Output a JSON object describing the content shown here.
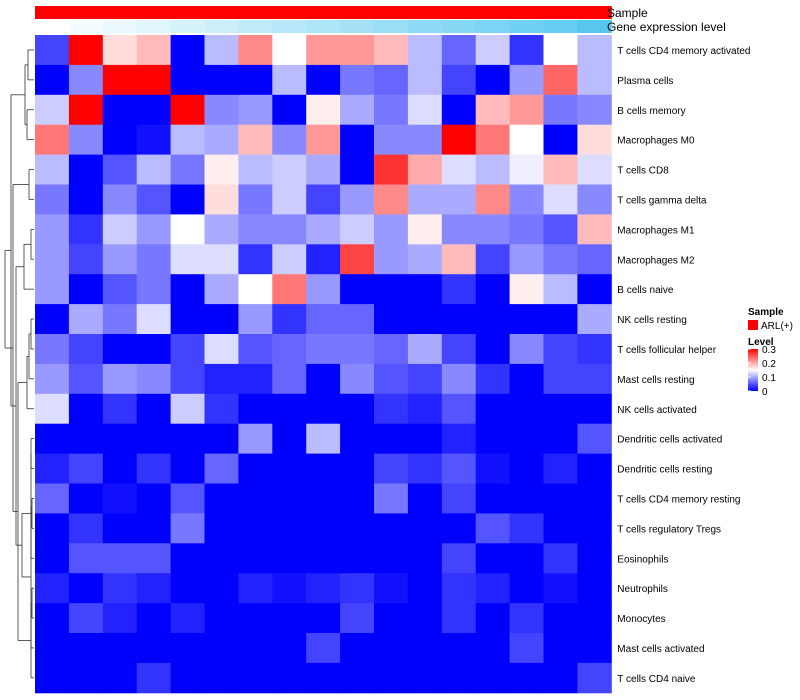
{
  "chart_data": {
    "type": "heatmap",
    "annotations": [
      {
        "name": "Sample",
        "kind": "categorical",
        "color": "#ff0000"
      },
      {
        "name": "Gene expression level",
        "kind": "continuous",
        "color_low": "#ffffff",
        "color_high": "#56c8f0"
      }
    ],
    "rows": [
      "T cells CD4 memory activated",
      "Plasma cells",
      "B cells memory",
      "Macrophages M0",
      "T cells CD8",
      "T cells gamma delta",
      "Macrophages M1",
      "Macrophages M2",
      "B cells naive",
      "NK cells resting",
      "T cells follicular helper",
      "Mast cells resting",
      "NK cells activated",
      "Dendritic cells activated",
      "Dendritic cells resting",
      "T cells CD4 memory resting",
      "T cells regulatory  Tregs",
      "Eosinophils",
      "Neutrophils",
      "Monocytes",
      "Mast cells activated",
      "T cells CD4 naive"
    ],
    "n_columns": 17,
    "values": [
      [
        0.04,
        0.3,
        0.17,
        0.19,
        0.0,
        0.11,
        0.22,
        0.15,
        0.21,
        0.21,
        0.19,
        0.11,
        0.06,
        0.12,
        0.03,
        0.15,
        0.11
      ],
      [
        0.0,
        0.08,
        0.3,
        0.3,
        0.0,
        0.0,
        0.0,
        0.11,
        0.0,
        0.07,
        0.06,
        0.11,
        0.04,
        0.0,
        0.09,
        0.24,
        0.11
      ],
      [
        0.12,
        0.3,
        0.0,
        0.0,
        0.3,
        0.08,
        0.09,
        0.0,
        0.16,
        0.1,
        0.07,
        0.13,
        0.0,
        0.19,
        0.21,
        0.07,
        0.08
      ],
      [
        0.23,
        0.08,
        0.0,
        0.01,
        0.11,
        0.1,
        0.19,
        0.08,
        0.21,
        0.0,
        0.08,
        0.08,
        0.3,
        0.23,
        0.15,
        0.0,
        0.17
      ],
      [
        0.11,
        0.0,
        0.05,
        0.11,
        0.07,
        0.16,
        0.11,
        0.12,
        0.1,
        0.0,
        0.27,
        0.2,
        0.13,
        0.11,
        0.14,
        0.19,
        0.13
      ],
      [
        0.07,
        0.0,
        0.08,
        0.05,
        0.0,
        0.17,
        0.07,
        0.12,
        0.04,
        0.09,
        0.22,
        0.1,
        0.1,
        0.22,
        0.08,
        0.13,
        0.08
      ],
      [
        0.09,
        0.03,
        0.12,
        0.09,
        0.15,
        0.1,
        0.08,
        0.08,
        0.1,
        0.12,
        0.09,
        0.16,
        0.08,
        0.08,
        0.07,
        0.05,
        0.19
      ],
      [
        0.09,
        0.04,
        0.09,
        0.07,
        0.13,
        0.13,
        0.03,
        0.12,
        0.02,
        0.26,
        0.09,
        0.1,
        0.19,
        0.04,
        0.09,
        0.07,
        0.06
      ],
      [
        0.09,
        0.0,
        0.05,
        0.07,
        0.0,
        0.1,
        0.15,
        0.23,
        0.09,
        0.0,
        0.0,
        0.0,
        0.03,
        0.0,
        0.16,
        0.11,
        0.0
      ],
      [
        0.0,
        0.1,
        0.07,
        0.13,
        0.0,
        0.0,
        0.09,
        0.03,
        0.06,
        0.06,
        0.0,
        0.0,
        0.0,
        0.0,
        0.0,
        0.0,
        0.1
      ],
      [
        0.07,
        0.04,
        0.0,
        0.0,
        0.04,
        0.13,
        0.05,
        0.06,
        0.07,
        0.07,
        0.06,
        0.1,
        0.04,
        0.0,
        0.08,
        0.04,
        0.03
      ],
      [
        0.09,
        0.05,
        0.09,
        0.08,
        0.04,
        0.02,
        0.02,
        0.06,
        0.0,
        0.08,
        0.05,
        0.04,
        0.08,
        0.03,
        0.0,
        0.04,
        0.04
      ],
      [
        0.13,
        0.0,
        0.03,
        0.0,
        0.12,
        0.03,
        0.0,
        0.0,
        0.0,
        0.0,
        0.03,
        0.02,
        0.05,
        0.0,
        0.0,
        0.0,
        0.0
      ],
      [
        0.0,
        0.0,
        0.0,
        0.0,
        0.0,
        0.0,
        0.09,
        0.0,
        0.11,
        0.0,
        0.0,
        0.0,
        0.02,
        0.0,
        0.0,
        0.0,
        0.05
      ],
      [
        0.02,
        0.04,
        0.0,
        0.03,
        0.0,
        0.06,
        0.0,
        0.0,
        0.0,
        0.0,
        0.04,
        0.03,
        0.05,
        0.01,
        0.0,
        0.02,
        0.0
      ],
      [
        0.06,
        0.0,
        0.01,
        0.0,
        0.05,
        0.0,
        0.0,
        0.0,
        0.0,
        0.0,
        0.07,
        0.0,
        0.04,
        0.0,
        0.0,
        0.0,
        0.0
      ],
      [
        0.0,
        0.03,
        0.0,
        0.0,
        0.07,
        0.0,
        0.0,
        0.0,
        0.0,
        0.0,
        0.0,
        0.0,
        0.0,
        0.05,
        0.03,
        0.0,
        0.0
      ],
      [
        0.0,
        0.05,
        0.05,
        0.05,
        0.0,
        0.0,
        0.0,
        0.0,
        0.0,
        0.0,
        0.0,
        0.0,
        0.04,
        0.0,
        0.0,
        0.03,
        0.0
      ],
      [
        0.02,
        0.0,
        0.03,
        0.02,
        0.0,
        0.0,
        0.02,
        0.01,
        0.02,
        0.03,
        0.01,
        0.0,
        0.03,
        0.02,
        0.0,
        0.01,
        0.0
      ],
      [
        0.0,
        0.04,
        0.02,
        0.0,
        0.02,
        0.0,
        0.0,
        0.0,
        0.0,
        0.04,
        0.0,
        0.0,
        0.03,
        0.0,
        0.03,
        0.0,
        0.0
      ],
      [
        0.0,
        0.0,
        0.0,
        0.0,
        0.0,
        0.0,
        0.0,
        0.0,
        0.04,
        0.0,
        0.0,
        0.0,
        0.0,
        0.0,
        0.04,
        0.0,
        0.0
      ],
      [
        0.0,
        0.0,
        0.0,
        0.03,
        0.0,
        0.0,
        0.0,
        0.0,
        0.0,
        0.0,
        0.0,
        0.0,
        0.0,
        0.0,
        0.0,
        0.0,
        0.04
      ]
    ],
    "gene_expression_level": [
      0.0,
      0.06,
      0.12,
      0.18,
      0.24,
      0.3,
      0.36,
      0.42,
      0.48,
      0.54,
      0.6,
      0.66,
      0.72,
      0.78,
      0.84,
      0.9,
      1.0
    ],
    "legend": {
      "sample_title": "Sample",
      "sample_entry": "ARL(+)",
      "level_title": "Level",
      "level_ticks": [
        {
          "value": 0.3,
          "label": "0.3"
        },
        {
          "value": 0.2,
          "label": "0.2"
        },
        {
          "value": 0.1,
          "label": "0.1"
        },
        {
          "value": 0.0,
          "label": "0"
        }
      ],
      "level_range": [
        0,
        0.3
      ],
      "colors": {
        "low": "#0000ff",
        "mid": "#ffffff",
        "high": "#ff0000"
      }
    },
    "dendrogram": "left",
    "dendrogram_rows_tree": "hierarchical"
  }
}
